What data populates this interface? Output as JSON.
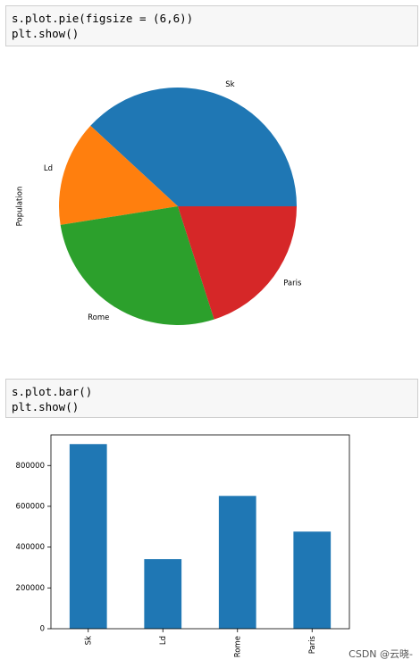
{
  "cells": [
    {
      "code": [
        "s.plot.pie(figsize = (6,6))",
        "plt.show()"
      ]
    },
    {
      "code": [
        "s.plot.bar()",
        "plt.show()"
      ]
    }
  ],
  "chart_data": [
    {
      "type": "pie",
      "ylabel": "Population",
      "categories": [
        "Sk",
        "Ld",
        "Rome",
        "Paris"
      ],
      "values": [
        905000,
        341000,
        651000,
        476000
      ],
      "colors": [
        "#1f77b4",
        "#ff7f0e",
        "#2ca02c",
        "#d62728"
      ]
    },
    {
      "type": "bar",
      "categories": [
        "Sk",
        "Ld",
        "Rome",
        "Paris"
      ],
      "values": [
        905000,
        341000,
        651000,
        476000
      ],
      "color": "#1f77b4",
      "ylim": [
        0,
        950000
      ],
      "yticks": [
        0,
        200000,
        400000,
        600000,
        800000
      ]
    }
  ],
  "watermark": "CSDN @云晓-"
}
